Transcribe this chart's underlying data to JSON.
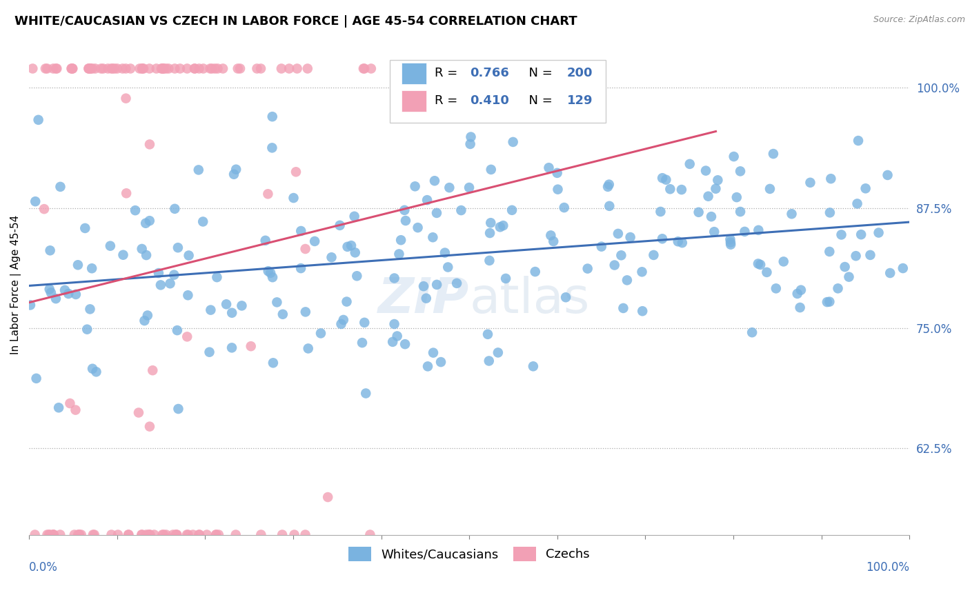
{
  "title": "WHITE/CAUCASIAN VS CZECH IN LABOR FORCE | AGE 45-54 CORRELATION CHART",
  "source": "Source: ZipAtlas.com",
  "ylabel": "In Labor Force | Age 45-54",
  "ytick_labels": [
    "62.5%",
    "75.0%",
    "87.5%",
    "100.0%"
  ],
  "ytick_values": [
    0.625,
    0.75,
    0.875,
    1.0
  ],
  "xlim": [
    0.0,
    1.0
  ],
  "ylim": [
    0.535,
    1.055
  ],
  "blue_color": "#7ab3e0",
  "pink_color": "#f2a0b5",
  "blue_line_color": "#3d6eb5",
  "pink_line_color": "#d94f72",
  "R_blue": 0.766,
  "N_blue": 200,
  "R_pink": 0.41,
  "N_pink": 129,
  "title_fontsize": 13,
  "axis_label_fontsize": 11,
  "tick_fontsize": 12,
  "legend_fontsize": 13
}
